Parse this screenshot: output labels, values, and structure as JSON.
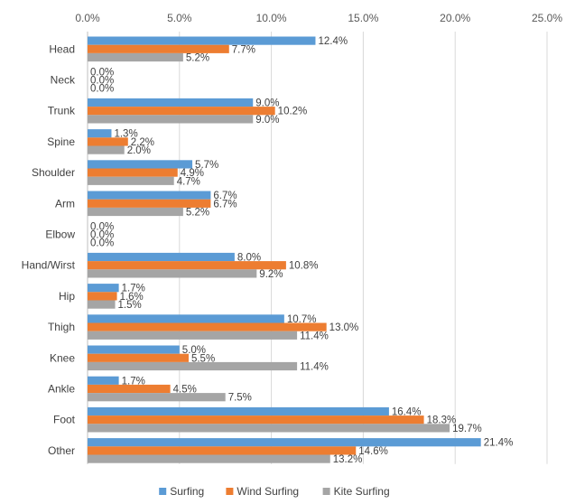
{
  "chart_data": {
    "type": "bar",
    "orientation": "horizontal",
    "categories": [
      "Head",
      "Neck",
      "Trunk",
      "Spine",
      "Shoulder",
      "Arm",
      "Elbow",
      "Hand/Wirst",
      "Hip",
      "Thigh",
      "Knee",
      "Ankle",
      "Foot",
      "Other"
    ],
    "series": [
      {
        "name": "Surfing",
        "color": "#5b9bd5",
        "values": [
          12.4,
          0.0,
          9.0,
          1.3,
          5.7,
          6.7,
          0.0,
          8.0,
          1.7,
          10.7,
          5.0,
          1.7,
          16.4,
          21.4
        ]
      },
      {
        "name": "Wind Surfing",
        "color": "#ed7d31",
        "values": [
          7.7,
          0.0,
          10.2,
          2.2,
          4.9,
          6.7,
          0.0,
          10.8,
          1.6,
          13.0,
          5.5,
          4.5,
          18.3,
          14.6
        ]
      },
      {
        "name": "Kite Surfing",
        "color": "#a5a5a5",
        "values": [
          5.2,
          0.0,
          9.0,
          2.0,
          4.7,
          5.2,
          0.0,
          9.2,
          1.5,
          11.4,
          11.4,
          7.5,
          19.7,
          13.2
        ]
      }
    ],
    "data_labels": [
      [
        "12.4%",
        "7.7%",
        "5.2%"
      ],
      [
        "0.0%",
        "0.0%",
        "0.0%"
      ],
      [
        "9.0%",
        "10.2%",
        "9.0%"
      ],
      [
        "1.3%",
        "2.2%",
        "2.0%"
      ],
      [
        "5.7%",
        "4.9%",
        "4.7%"
      ],
      [
        "6.7%",
        "6.7%",
        "5.2%"
      ],
      [
        "0.0%",
        "0.0%",
        "0.0%"
      ],
      [
        "8.0%",
        "10.8%",
        "9.2%"
      ],
      [
        "1.7%",
        "1.6%",
        "1.5%"
      ],
      [
        "10.7%",
        "13.0%",
        "11.4%"
      ],
      [
        "5.0%",
        "5.5%",
        "11.4%"
      ],
      [
        "1.7%",
        "4.5%",
        "7.5%"
      ],
      [
        "16.4%",
        "18.3%",
        "19.7%"
      ],
      [
        "21.4%",
        "14.6%",
        "13.2%"
      ]
    ],
    "xlim": [
      0,
      25
    ],
    "xticks": [
      0,
      5,
      10,
      15,
      20,
      25
    ],
    "xtick_labels": [
      "0.0%",
      "5.0%",
      "10.0%",
      "15.0%",
      "20.0%",
      "25.0%"
    ],
    "x_axis_position": "top",
    "grid": true,
    "legend": {
      "placement": "bottom",
      "entries": [
        "Surfing",
        "Wind Surfing",
        "Kite Surfing"
      ]
    },
    "title": "",
    "xlabel": "",
    "ylabel": ""
  }
}
